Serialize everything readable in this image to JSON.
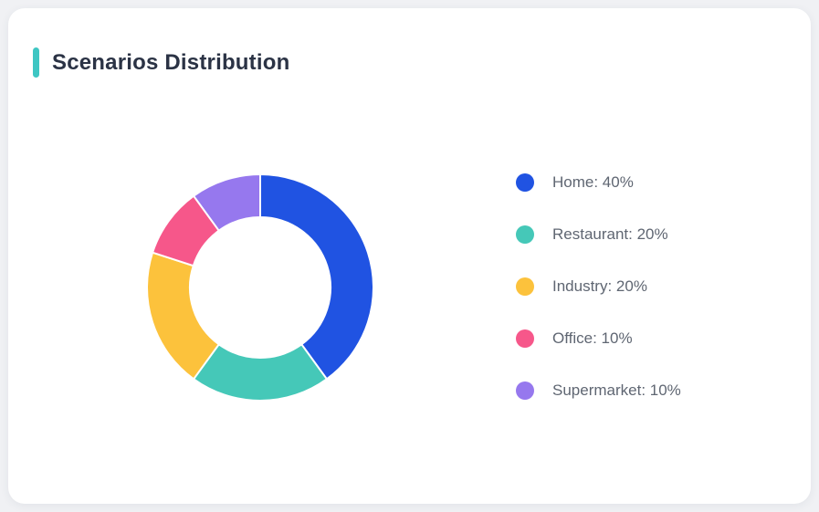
{
  "page": {
    "background_color": "#F0F1F4",
    "card_background_color": "#FFFFFF"
  },
  "header": {
    "title": "Scenarios Distribution",
    "accent_color": "#3EC6C3",
    "title_color": "#2B3345"
  },
  "chart_data": {
    "type": "pie",
    "title": "Scenarios Distribution",
    "donut": true,
    "inner_radius_ratio": 0.62,
    "start_angle_deg": 0,
    "direction": "clockwise",
    "legend_position": "right",
    "categories": [
      "Home",
      "Restaurant",
      "Industry",
      "Office",
      "Supermarket"
    ],
    "values": [
      40,
      20,
      20,
      10,
      10
    ],
    "unit": "%",
    "colors": [
      "#2053E2",
      "#45C8B8",
      "#FCC23C",
      "#F6578A",
      "#9678EE"
    ],
    "segment_gap_color": "#FFFFFF",
    "legend_labels": [
      "Home: 40%",
      "Restaurant: 20%",
      "Industry: 20%",
      "Office: 10%",
      "Supermarket: 10%"
    ],
    "legend_text_color": "#5F6672"
  }
}
